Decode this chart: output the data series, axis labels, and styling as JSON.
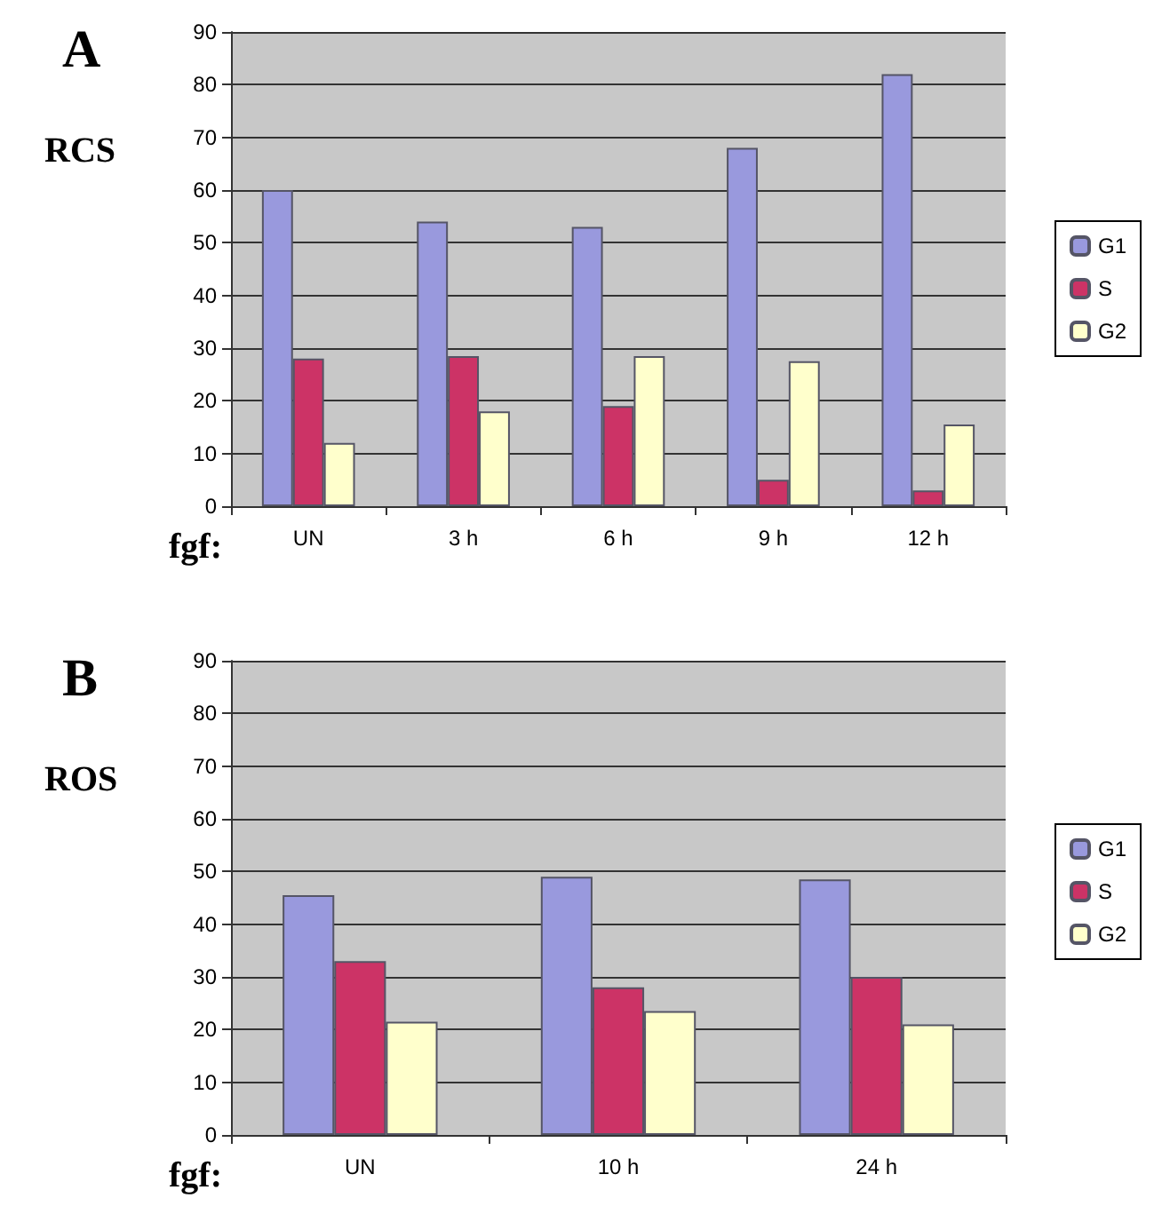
{
  "chart_data": [
    {
      "type": "bar",
      "title": "A",
      "ylabel": "RCS",
      "xlabel": "fgf:",
      "categories": [
        "UN",
        "3 h",
        "6 h",
        "9 h",
        "12 h"
      ],
      "series": [
        {
          "name": "G1",
          "color": "#9999dd",
          "values": [
            60,
            54,
            53,
            68,
            82
          ]
        },
        {
          "name": "S",
          "color": "#cc3366",
          "values": [
            28,
            28.5,
            19,
            5,
            3
          ]
        },
        {
          "name": "G2",
          "color": "#ffffcc",
          "values": [
            12,
            18,
            28.5,
            27.5,
            15.5
          ]
        }
      ],
      "ylim": [
        0,
        90
      ],
      "yticks": [
        0,
        10,
        20,
        30,
        40,
        50,
        60,
        70,
        80,
        90
      ],
      "grid": "y",
      "legend": "right"
    },
    {
      "type": "bar",
      "title": "B",
      "ylabel": "ROS",
      "xlabel": "fgf:",
      "categories": [
        "UN",
        "10 h",
        "24 h"
      ],
      "series": [
        {
          "name": "G1",
          "color": "#9999dd",
          "values": [
            45.5,
            49,
            48.5
          ]
        },
        {
          "name": "S",
          "color": "#cc3366",
          "values": [
            33,
            28,
            30
          ]
        },
        {
          "name": "G2",
          "color": "#ffffcc",
          "values": [
            21.5,
            23.5,
            21
          ]
        }
      ],
      "ylim": [
        0,
        90
      ],
      "yticks": [
        0,
        10,
        20,
        30,
        40,
        50,
        60,
        70,
        80,
        90
      ],
      "grid": "y",
      "legend": "right"
    }
  ]
}
